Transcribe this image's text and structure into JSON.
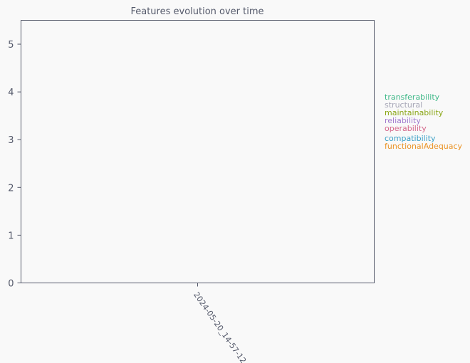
{
  "chart_data": {
    "type": "line",
    "title": "Features evolution over time",
    "xlabel": "",
    "ylabel": "",
    "x": [
      "2024-05-20_14-57-12"
    ],
    "ylim": [
      0,
      5.5
    ],
    "yticks": [
      0,
      1,
      2,
      3,
      4,
      5
    ],
    "grid": false,
    "legend_position": "right",
    "series": [
      {
        "name": "transferability",
        "color": "#3fb888",
        "values": [
          null
        ]
      },
      {
        "name": "structural",
        "color": "#a6a6b6",
        "values": [
          null
        ]
      },
      {
        "name": "maintainability",
        "color": "#8aa616",
        "values": [
          null
        ]
      },
      {
        "name": "reliability",
        "color": "#a27bce",
        "values": [
          null
        ]
      },
      {
        "name": "operability",
        "color": "#d4678a",
        "values": [
          null
        ]
      },
      {
        "name": "compatibility",
        "color": "#3a9fc6",
        "values": [
          null
        ]
      },
      {
        "name": "functionalAdequacy",
        "color": "#ea9326",
        "values": [
          null
        ]
      }
    ]
  }
}
